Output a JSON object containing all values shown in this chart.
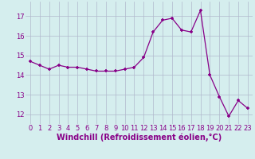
{
  "x": [
    0,
    1,
    2,
    3,
    4,
    5,
    6,
    7,
    8,
    9,
    10,
    11,
    12,
    13,
    14,
    15,
    16,
    17,
    18,
    19,
    20,
    21,
    22,
    23
  ],
  "y": [
    14.7,
    14.5,
    14.3,
    14.5,
    14.4,
    14.4,
    14.3,
    14.2,
    14.2,
    14.2,
    14.3,
    14.4,
    14.9,
    16.2,
    16.8,
    16.9,
    16.3,
    16.2,
    17.3,
    14.0,
    12.9,
    11.9,
    12.7,
    12.3
  ],
  "line_color": "#880088",
  "marker": "+",
  "marker_size": 3.5,
  "linewidth": 0.9,
  "bg_color": "#d5eeee",
  "grid_color": "#b0b8cc",
  "xlabel": "Windchill (Refroidissement éolien,°C)",
  "xlabel_fontsize": 7.0,
  "xlabel_color": "#880088",
  "tick_color": "#880088",
  "ylim": [
    11.5,
    17.75
  ],
  "yticks": [
    12,
    13,
    14,
    15,
    16,
    17
  ],
  "xticks": [
    0,
    1,
    2,
    3,
    4,
    5,
    6,
    7,
    8,
    9,
    10,
    11,
    12,
    13,
    14,
    15,
    16,
    17,
    18,
    19,
    20,
    21,
    22,
    23
  ],
  "tick_fontsize": 6.0,
  "markeredgewidth": 1.2
}
